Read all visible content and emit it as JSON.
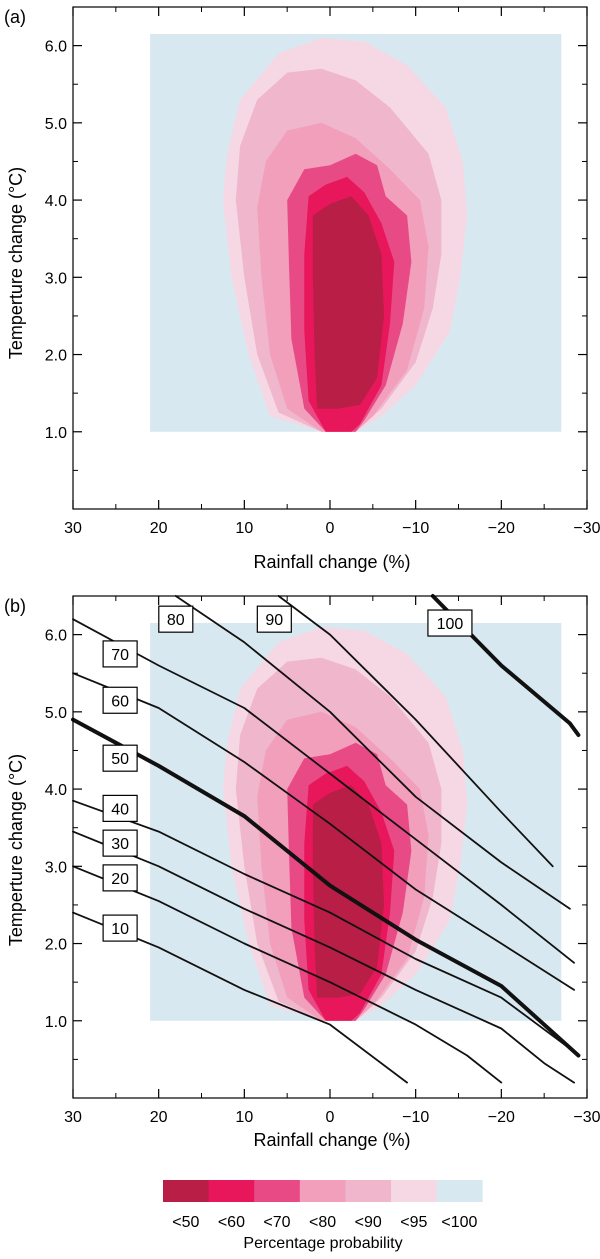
{
  "colors": {
    "p50": "#b81e46",
    "p60": "#e8165a",
    "p70": "#e84a86",
    "p80": "#f29fbc",
    "p90": "#f0b6cc",
    "p95": "#f6d8e4",
    "p100": "#d8e8f0"
  },
  "chart_data": [
    {
      "type": "area",
      "panel_label": "(a)",
      "xlabel": "Rainfall change (%)",
      "ylabel": "Temperture change (°C)",
      "xlim": [
        30,
        -30
      ],
      "ylim": [
        0,
        6.5
      ],
      "x_ticks": [
        "30",
        "20",
        "10",
        "0",
        "−10",
        "−20",
        "−30"
      ],
      "x_tick_values": [
        30,
        20,
        10,
        0,
        -10,
        -20,
        -30
      ],
      "y_ticks": [
        "1.0",
        "2.0",
        "3.0",
        "4.0",
        "5.0",
        "6.0"
      ],
      "y_tick_values": [
        1,
        2,
        3,
        4,
        5,
        6
      ],
      "domain": {
        "x": [
          21,
          -27
        ],
        "y": [
          1.0,
          6.15
        ]
      },
      "probability_contours": [
        {
          "level": "<95",
          "color_key": "p95",
          "points": [
            [
              1,
              1.0
            ],
            [
              7,
              1.2
            ],
            [
              9.5,
              2.0
            ],
            [
              11.5,
              3.0
            ],
            [
              12.5,
              4.0
            ],
            [
              12,
              4.6
            ],
            [
              10.5,
              5.3
            ],
            [
              6,
              5.9
            ],
            [
              1,
              6.1
            ],
            [
              -4,
              6.05
            ],
            [
              -9,
              5.75
            ],
            [
              -13.5,
              5.2
            ],
            [
              -15.5,
              4.5
            ],
            [
              -16,
              3.8
            ],
            [
              -15.2,
              3.0
            ],
            [
              -14,
              2.3
            ],
            [
              -10,
              1.6
            ],
            [
              -6,
              1.2
            ],
            [
              -3,
              1.0
            ]
          ]
        },
        {
          "level": "<90",
          "color_key": "p90",
          "points": [
            [
              1,
              1.0
            ],
            [
              6,
              1.25
            ],
            [
              8.5,
              2.0
            ],
            [
              10,
              3.0
            ],
            [
              11,
              4.0
            ],
            [
              10.5,
              4.7
            ],
            [
              8.5,
              5.3
            ],
            [
              5,
              5.65
            ],
            [
              1,
              5.7
            ],
            [
              -3,
              5.55
            ],
            [
              -7,
              5.2
            ],
            [
              -11.5,
              4.6
            ],
            [
              -13,
              4.0
            ],
            [
              -13,
              3.3
            ],
            [
              -12,
              2.6
            ],
            [
              -10,
              1.9
            ],
            [
              -6,
              1.3
            ],
            [
              -3,
              1.0
            ]
          ]
        },
        {
          "level": "<80",
          "color_key": "p80",
          "points": [
            [
              1,
              1.0
            ],
            [
              5,
              1.3
            ],
            [
              7,
              2.0
            ],
            [
              8,
              3.0
            ],
            [
              8.5,
              3.9
            ],
            [
              7.5,
              4.5
            ],
            [
              5,
              4.9
            ],
            [
              1,
              5.0
            ],
            [
              -3,
              4.8
            ],
            [
              -7,
              4.4
            ],
            [
              -10.5,
              4.0
            ],
            [
              -11.5,
              3.4
            ],
            [
              -11,
              2.6
            ],
            [
              -9,
              1.8
            ],
            [
              -5,
              1.2
            ],
            [
              -3,
              1.0
            ]
          ]
        },
        {
          "level": "<70",
          "color_key": "p70",
          "points": [
            [
              0.5,
              1.0
            ],
            [
              3,
              1.3
            ],
            [
              4.5,
              2.2
            ],
            [
              4.8,
              3.2
            ],
            [
              5,
              4.0
            ],
            [
              3,
              4.4
            ],
            [
              0,
              4.45
            ],
            [
              -3,
              4.6
            ],
            [
              -5.5,
              4.45
            ],
            [
              -6.5,
              4.05
            ],
            [
              -9,
              3.8
            ],
            [
              -9.5,
              3.2
            ],
            [
              -8.5,
              2.4
            ],
            [
              -6.5,
              1.6
            ],
            [
              -4,
              1.15
            ],
            [
              -3,
              1.0
            ]
          ]
        },
        {
          "level": "<60",
          "color_key": "p60",
          "points": [
            [
              0.5,
              1.0
            ],
            [
              2.5,
              1.4
            ],
            [
              3,
              2.3
            ],
            [
              3,
              3.3
            ],
            [
              2.5,
              4.05
            ],
            [
              0.5,
              4.2
            ],
            [
              -2,
              4.3
            ],
            [
              -4,
              4.1
            ],
            [
              -6,
              3.7
            ],
            [
              -7.5,
              3.2
            ],
            [
              -7,
              2.4
            ],
            [
              -6,
              1.6
            ],
            [
              -3.5,
              1.1
            ],
            [
              -2.5,
              1.0
            ]
          ]
        },
        {
          "level": "<50",
          "color_key": "p50",
          "points": [
            [
              1.5,
              1.3
            ],
            [
              1.8,
              2.0
            ],
            [
              2,
              3.0
            ],
            [
              2,
              3.8
            ],
            [
              0,
              3.95
            ],
            [
              -2.5,
              4.05
            ],
            [
              -4.5,
              3.8
            ],
            [
              -6,
              3.3
            ],
            [
              -6.3,
              2.5
            ],
            [
              -5.5,
              1.7
            ],
            [
              -3.5,
              1.35
            ],
            [
              -1,
              1.3
            ]
          ]
        }
      ]
    },
    {
      "type": "area",
      "panel_label": "(b)",
      "xlabel": "Rainfall change (%)",
      "ylabel": "Temperture change (°C)",
      "xlim": [
        30,
        -30
      ],
      "ylim": [
        0,
        6.5
      ],
      "x_ticks": [
        "30",
        "20",
        "10",
        "0",
        "−10",
        "−20",
        "−30"
      ],
      "x_tick_values": [
        30,
        20,
        10,
        0,
        -10,
        -20,
        -30
      ],
      "y_ticks": [
        "1.0",
        "2.0",
        "3.0",
        "4.0",
        "5.0",
        "6.0"
      ],
      "y_tick_values": [
        1,
        2,
        3,
        4,
        5,
        6
      ],
      "risk_lines": [
        {
          "label": "10",
          "bold": false,
          "points": [
            [
              30,
              2.4
            ],
            [
              20,
              1.95
            ],
            [
              10,
              1.4
            ],
            [
              0,
              0.95
            ],
            [
              -9,
              0.2
            ]
          ]
        },
        {
          "label": "20",
          "bold": false,
          "points": [
            [
              30,
              3.0
            ],
            [
              20,
              2.55
            ],
            [
              10,
              2.0
            ],
            [
              0,
              1.5
            ],
            [
              -10,
              0.95
            ],
            [
              -16,
              0.55
            ],
            [
              -20,
              0.2
            ]
          ]
        },
        {
          "label": "30",
          "bold": false,
          "points": [
            [
              30,
              3.45
            ],
            [
              20,
              3.0
            ],
            [
              10,
              2.45
            ],
            [
              0,
              1.95
            ],
            [
              -10,
              1.4
            ],
            [
              -20,
              0.9
            ],
            [
              -25,
              0.45
            ],
            [
              -28.5,
              0.2
            ]
          ]
        },
        {
          "label": "40",
          "bold": false,
          "points": [
            [
              30,
              3.85
            ],
            [
              20,
              3.45
            ],
            [
              10,
              2.9
            ],
            [
              0,
              2.4
            ],
            [
              -10,
              1.8
            ],
            [
              -20,
              1.3
            ],
            [
              -28.5,
              0.6
            ]
          ]
        },
        {
          "label": "50",
          "bold": true,
          "points": [
            [
              30,
              4.9
            ],
            [
              20,
              4.3
            ],
            [
              10,
              3.65
            ],
            [
              0,
              2.75
            ],
            [
              -10,
              2.05
            ],
            [
              -20,
              1.45
            ],
            [
              -29,
              0.55
            ]
          ]
        },
        {
          "label": "60",
          "bold": false,
          "points": [
            [
              30,
              5.5
            ],
            [
              20,
              5.05
            ],
            [
              10,
              4.35
            ],
            [
              0,
              3.55
            ],
            [
              -10,
              2.7
            ],
            [
              -20,
              2.0
            ],
            [
              -28.5,
              1.4
            ]
          ]
        },
        {
          "label": "70",
          "bold": false,
          "points": [
            [
              30,
              6.2
            ],
            [
              20,
              5.6
            ],
            [
              10,
              5.05
            ],
            [
              0,
              4.2
            ],
            [
              -10,
              3.35
            ],
            [
              -20,
              2.5
            ],
            [
              -28.5,
              1.75
            ]
          ]
        },
        {
          "label": "80",
          "bold": false,
          "points": [
            [
              18,
              6.5
            ],
            [
              10,
              5.9
            ],
            [
              0,
              5.0
            ],
            [
              -10,
              3.9
            ],
            [
              -20,
              3.05
            ],
            [
              -28,
              2.45
            ]
          ]
        },
        {
          "label": "90",
          "bold": false,
          "points": [
            [
              6,
              6.5
            ],
            [
              0,
              6.0
            ],
            [
              -10,
              4.9
            ],
            [
              -20,
              3.7
            ],
            [
              -26,
              3.0
            ]
          ]
        },
        {
          "label": "100",
          "bold": true,
          "points": [
            [
              -12,
              6.5
            ],
            [
              -20,
              5.6
            ],
            [
              -28,
              4.85
            ],
            [
              -29,
              4.7
            ]
          ]
        }
      ],
      "label_boxes": [
        {
          "text": "10",
          "at": [
            24.5,
            2.2
          ]
        },
        {
          "text": "20",
          "at": [
            24.5,
            2.85
          ]
        },
        {
          "text": "30",
          "at": [
            24.5,
            3.3
          ]
        },
        {
          "text": "40",
          "at": [
            24.5,
            3.75
          ]
        },
        {
          "text": "50",
          "at": [
            24.5,
            4.4
          ]
        },
        {
          "text": "60",
          "at": [
            24.5,
            5.15
          ]
        },
        {
          "text": "70",
          "at": [
            24.5,
            5.75
          ]
        },
        {
          "text": "80",
          "at": [
            18,
            6.2
          ]
        },
        {
          "text": "90",
          "at": [
            6.5,
            6.2
          ]
        },
        {
          "text": "100",
          "at": [
            -14,
            6.15
          ]
        }
      ]
    }
  ],
  "legend": {
    "title": "Percentage probability",
    "items": [
      {
        "label": "<50",
        "color_key": "p50"
      },
      {
        "label": "<60",
        "color_key": "p60"
      },
      {
        "label": "<70",
        "color_key": "p70"
      },
      {
        "label": "<80",
        "color_key": "p80"
      },
      {
        "label": "<90",
        "color_key": "p90"
      },
      {
        "label": "<95",
        "color_key": "p95"
      },
      {
        "label": "<100",
        "color_key": "p100"
      }
    ]
  }
}
